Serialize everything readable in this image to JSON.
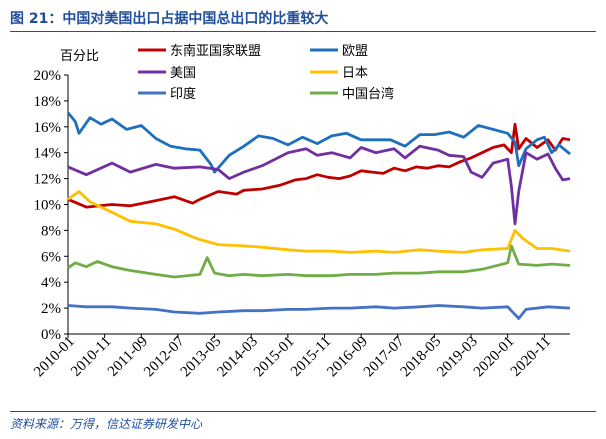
{
  "figure": {
    "title": "图 21：中国对美国出口占据中国总出口的比重较大",
    "source": "资料来源：万得，信达证券研发中心"
  },
  "chart_data": {
    "type": "line",
    "unit_label": "百分比",
    "ylim": [
      0,
      20
    ],
    "y_ticks": [
      "0%",
      "2%",
      "4%",
      "6%",
      "8%",
      "10%",
      "12%",
      "14%",
      "16%",
      "18%",
      "20%"
    ],
    "x_tick_labels": [
      "2010-01",
      "2010-11",
      "2011-09",
      "2012-07",
      "2013-05",
      "2014-03",
      "2015-01",
      "2015-11",
      "2016-09",
      "2017-07",
      "2018-05",
      "2019-03",
      "2020-01",
      "2020-11"
    ],
    "x_range": [
      "2010-01",
      "2021-06"
    ],
    "grid": false,
    "legend_position": "top",
    "series": [
      {
        "name": "东南亚国家联盟",
        "color": "#c00000",
        "points": [
          [
            "2010-01",
            10.4
          ],
          [
            "2010-06",
            9.8
          ],
          [
            "2011-01",
            10.0
          ],
          [
            "2011-06",
            9.9
          ],
          [
            "2012-01",
            10.3
          ],
          [
            "2012-06",
            10.6
          ],
          [
            "2012-11",
            10.1
          ],
          [
            "2013-01",
            10.4
          ],
          [
            "2013-06",
            11.0
          ],
          [
            "2013-11",
            10.8
          ],
          [
            "2014-01",
            11.1
          ],
          [
            "2014-06",
            11.2
          ],
          [
            "2014-11",
            11.5
          ],
          [
            "2015-03",
            11.9
          ],
          [
            "2015-06",
            12.0
          ],
          [
            "2015-09",
            12.3
          ],
          [
            "2015-12",
            12.1
          ],
          [
            "2016-03",
            12.0
          ],
          [
            "2016-06",
            12.2
          ],
          [
            "2016-09",
            12.6
          ],
          [
            "2016-12",
            12.5
          ],
          [
            "2017-03",
            12.4
          ],
          [
            "2017-06",
            12.8
          ],
          [
            "2017-09",
            12.6
          ],
          [
            "2017-12",
            12.9
          ],
          [
            "2018-03",
            12.8
          ],
          [
            "2018-06",
            13.0
          ],
          [
            "2018-09",
            12.9
          ],
          [
            "2018-12",
            13.3
          ],
          [
            "2019-03",
            13.6
          ],
          [
            "2019-06",
            14.0
          ],
          [
            "2019-09",
            14.4
          ],
          [
            "2019-12",
            14.6
          ],
          [
            "2020-02",
            14.0
          ],
          [
            "2020-03",
            16.2
          ],
          [
            "2020-04",
            14.3
          ],
          [
            "2020-06",
            15.1
          ],
          [
            "2020-09",
            14.4
          ],
          [
            "2020-12",
            15.0
          ],
          [
            "2021-02",
            14.2
          ],
          [
            "2021-04",
            15.1
          ],
          [
            "2021-06",
            15.0
          ]
        ]
      },
      {
        "name": "欧盟",
        "color": "#1f6fbf",
        "points": [
          [
            "2010-01",
            17.1
          ],
          [
            "2010-03",
            16.4
          ],
          [
            "2010-04",
            15.5
          ],
          [
            "2010-07",
            16.7
          ],
          [
            "2010-10",
            16.2
          ],
          [
            "2011-01",
            16.6
          ],
          [
            "2011-05",
            15.8
          ],
          [
            "2011-09",
            16.1
          ],
          [
            "2012-01",
            15.1
          ],
          [
            "2012-05",
            14.5
          ],
          [
            "2012-09",
            14.3
          ],
          [
            "2013-01",
            14.2
          ],
          [
            "2013-04",
            13.1
          ],
          [
            "2013-05",
            12.5
          ],
          [
            "2013-09",
            13.8
          ],
          [
            "2014-01",
            14.5
          ],
          [
            "2014-05",
            15.3
          ],
          [
            "2014-09",
            15.1
          ],
          [
            "2015-01",
            14.6
          ],
          [
            "2015-05",
            15.2
          ],
          [
            "2015-09",
            14.7
          ],
          [
            "2016-01",
            15.3
          ],
          [
            "2016-05",
            15.5
          ],
          [
            "2016-09",
            15.0
          ],
          [
            "2017-01",
            15.0
          ],
          [
            "2017-05",
            15.0
          ],
          [
            "2017-09",
            14.5
          ],
          [
            "2018-01",
            15.4
          ],
          [
            "2018-05",
            15.4
          ],
          [
            "2018-09",
            15.6
          ],
          [
            "2019-01",
            15.2
          ],
          [
            "2019-05",
            16.1
          ],
          [
            "2019-09",
            15.8
          ],
          [
            "2020-01",
            15.5
          ],
          [
            "2020-03",
            14.8
          ],
          [
            "2020-04",
            13.0
          ],
          [
            "2020-06",
            14.3
          ],
          [
            "2020-09",
            15.0
          ],
          [
            "2020-11",
            15.2
          ],
          [
            "2021-01",
            14.0
          ],
          [
            "2021-03",
            14.6
          ],
          [
            "2021-06",
            13.9
          ]
        ]
      },
      {
        "name": "美国",
        "color": "#7030a0",
        "points": [
          [
            "2010-01",
            12.9
          ],
          [
            "2010-06",
            12.3
          ],
          [
            "2011-01",
            13.2
          ],
          [
            "2011-06",
            12.5
          ],
          [
            "2012-01",
            13.1
          ],
          [
            "2012-06",
            12.8
          ],
          [
            "2013-01",
            12.9
          ],
          [
            "2013-06",
            12.7
          ],
          [
            "2013-09",
            12.0
          ],
          [
            "2014-01",
            12.5
          ],
          [
            "2014-06",
            13.0
          ],
          [
            "2015-01",
            14.0
          ],
          [
            "2015-06",
            14.3
          ],
          [
            "2015-09",
            13.8
          ],
          [
            "2016-01",
            14.0
          ],
          [
            "2016-06",
            13.6
          ],
          [
            "2016-09",
            14.4
          ],
          [
            "2017-01",
            14.0
          ],
          [
            "2017-06",
            14.3
          ],
          [
            "2017-09",
            13.6
          ],
          [
            "2018-01",
            14.5
          ],
          [
            "2018-06",
            14.2
          ],
          [
            "2018-09",
            13.8
          ],
          [
            "2019-01",
            13.7
          ],
          [
            "2019-03",
            12.5
          ],
          [
            "2019-06",
            12.1
          ],
          [
            "2019-09",
            13.2
          ],
          [
            "2020-01",
            13.5
          ],
          [
            "2020-02",
            11.4
          ],
          [
            "2020-03",
            8.5
          ],
          [
            "2020-04",
            11.0
          ],
          [
            "2020-06",
            14.0
          ],
          [
            "2020-09",
            13.5
          ],
          [
            "2020-12",
            13.9
          ],
          [
            "2021-02",
            12.8
          ],
          [
            "2021-04",
            11.9
          ],
          [
            "2021-06",
            12.0
          ]
        ]
      },
      {
        "name": "日本",
        "color": "#ffc000",
        "points": [
          [
            "2010-01",
            10.4
          ],
          [
            "2010-04",
            11.0
          ],
          [
            "2010-07",
            10.2
          ],
          [
            "2011-01",
            9.4
          ],
          [
            "2011-06",
            8.7
          ],
          [
            "2012-01",
            8.5
          ],
          [
            "2012-06",
            8.1
          ],
          [
            "2012-11",
            7.5
          ],
          [
            "2013-01",
            7.3
          ],
          [
            "2013-06",
            6.9
          ],
          [
            "2014-01",
            6.8
          ],
          [
            "2014-06",
            6.7
          ],
          [
            "2015-01",
            6.5
          ],
          [
            "2015-06",
            6.4
          ],
          [
            "2016-01",
            6.4
          ],
          [
            "2016-06",
            6.3
          ],
          [
            "2017-01",
            6.4
          ],
          [
            "2017-06",
            6.3
          ],
          [
            "2018-01",
            6.5
          ],
          [
            "2018-06",
            6.4
          ],
          [
            "2019-01",
            6.3
          ],
          [
            "2019-06",
            6.5
          ],
          [
            "2020-01",
            6.6
          ],
          [
            "2020-03",
            8.0
          ],
          [
            "2020-05",
            7.4
          ],
          [
            "2020-09",
            6.6
          ],
          [
            "2021-01",
            6.6
          ],
          [
            "2021-06",
            6.4
          ]
        ]
      },
      {
        "name": "印度",
        "color": "#4472c4",
        "points": [
          [
            "2010-01",
            2.2
          ],
          [
            "2010-06",
            2.1
          ],
          [
            "2011-01",
            2.1
          ],
          [
            "2011-06",
            2.0
          ],
          [
            "2012-01",
            1.9
          ],
          [
            "2012-06",
            1.7
          ],
          [
            "2013-01",
            1.6
          ],
          [
            "2013-06",
            1.7
          ],
          [
            "2014-01",
            1.8
          ],
          [
            "2014-06",
            1.8
          ],
          [
            "2015-01",
            1.9
          ],
          [
            "2015-06",
            1.9
          ],
          [
            "2016-01",
            2.0
          ],
          [
            "2016-06",
            2.0
          ],
          [
            "2017-01",
            2.1
          ],
          [
            "2017-06",
            2.0
          ],
          [
            "2018-01",
            2.1
          ],
          [
            "2018-06",
            2.2
          ],
          [
            "2019-01",
            2.1
          ],
          [
            "2019-06",
            2.0
          ],
          [
            "2020-01",
            2.1
          ],
          [
            "2020-03",
            1.5
          ],
          [
            "2020-04",
            1.2
          ],
          [
            "2020-06",
            1.9
          ],
          [
            "2020-12",
            2.1
          ],
          [
            "2021-06",
            2.0
          ]
        ]
      },
      {
        "name": "中国台湾",
        "color": "#70ad47",
        "points": [
          [
            "2010-01",
            5.1
          ],
          [
            "2010-03",
            5.5
          ],
          [
            "2010-06",
            5.2
          ],
          [
            "2010-09",
            5.6
          ],
          [
            "2011-01",
            5.2
          ],
          [
            "2011-06",
            4.9
          ],
          [
            "2012-01",
            4.6
          ],
          [
            "2012-06",
            4.4
          ],
          [
            "2013-01",
            4.6
          ],
          [
            "2013-03",
            5.9
          ],
          [
            "2013-05",
            4.7
          ],
          [
            "2013-09",
            4.5
          ],
          [
            "2014-01",
            4.6
          ],
          [
            "2014-06",
            4.5
          ],
          [
            "2015-01",
            4.6
          ],
          [
            "2015-06",
            4.5
          ],
          [
            "2016-01",
            4.5
          ],
          [
            "2016-06",
            4.6
          ],
          [
            "2017-01",
            4.6
          ],
          [
            "2017-06",
            4.7
          ],
          [
            "2018-01",
            4.7
          ],
          [
            "2018-06",
            4.8
          ],
          [
            "2019-01",
            4.8
          ],
          [
            "2019-06",
            5.0
          ],
          [
            "2020-01",
            5.5
          ],
          [
            "2020-02",
            6.8
          ],
          [
            "2020-04",
            5.4
          ],
          [
            "2020-09",
            5.3
          ],
          [
            "2021-01",
            5.4
          ],
          [
            "2021-06",
            5.3
          ]
        ]
      }
    ]
  }
}
